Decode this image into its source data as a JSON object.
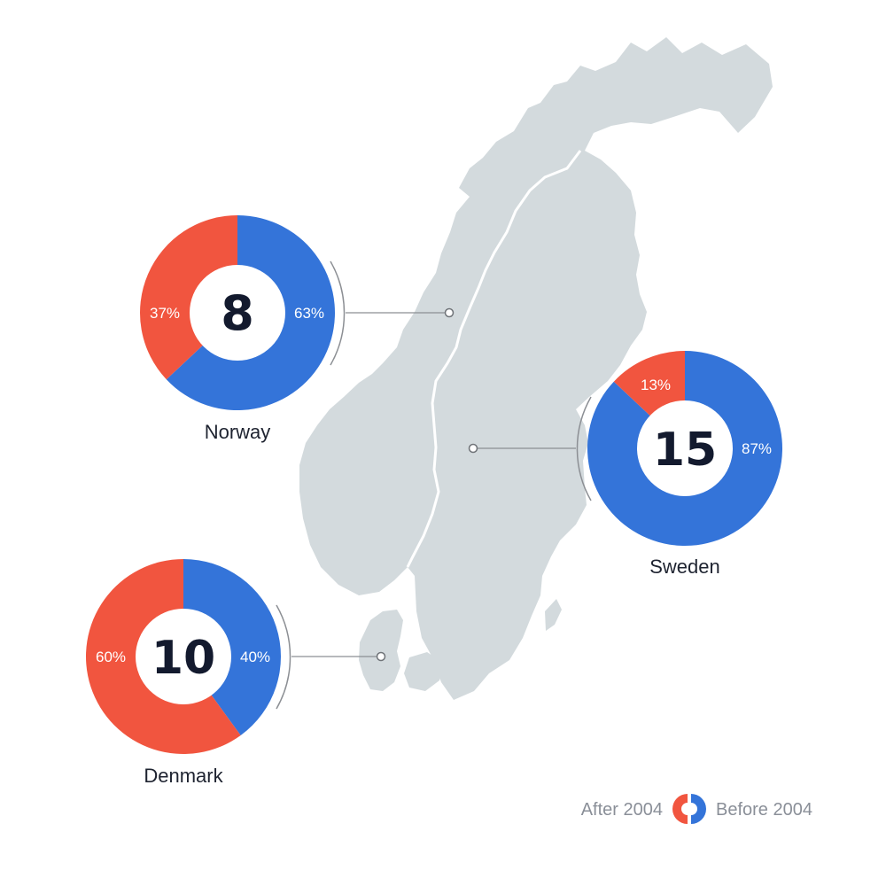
{
  "colors": {
    "after": "#f1553f",
    "before": "#3474d9",
    "map": "#d3dadd",
    "connector": "#8c8f94"
  },
  "legend": {
    "after_label": "After 2004",
    "before_label": "Before 2004"
  },
  "chart_data": [
    {
      "type": "pie",
      "country": "Norway",
      "total": "8",
      "slices": [
        {
          "name": "Before 2004",
          "value": 63,
          "label": "63%"
        },
        {
          "name": "After 2004",
          "value": 37,
          "label": "37%"
        }
      ]
    },
    {
      "type": "pie",
      "country": "Sweden",
      "total": "15",
      "slices": [
        {
          "name": "Before 2004",
          "value": 87,
          "label": "87%"
        },
        {
          "name": "After 2004",
          "value": 13,
          "label": "13%"
        }
      ]
    },
    {
      "type": "pie",
      "country": "Denmark",
      "total": "10",
      "slices": [
        {
          "name": "Before 2004",
          "value": 40,
          "label": "40%"
        },
        {
          "name": "After 2004",
          "value": 60,
          "label": "60%"
        }
      ]
    }
  ]
}
